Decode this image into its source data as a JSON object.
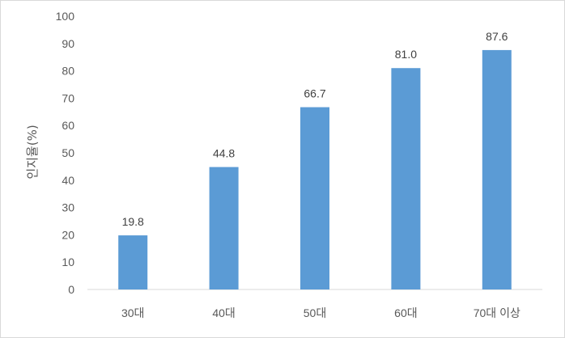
{
  "chart_data": {
    "type": "bar",
    "title": "",
    "xlabel": "",
    "ylabel": "인지율(%)",
    "categories": [
      "30대",
      "40대",
      "50대",
      "60대",
      "70대 이상"
    ],
    "values": [
      19.8,
      44.8,
      66.7,
      81.0,
      87.6
    ],
    "value_labels": [
      "19.8",
      "44.8",
      "66.7",
      "81.0",
      "87.6"
    ],
    "ylim": [
      0,
      100
    ],
    "yticks": [
      "0",
      "10",
      "20",
      "30",
      "40",
      "50",
      "60",
      "70",
      "80",
      "90",
      "100"
    ],
    "grid": false,
    "legend": "none",
    "bar_color": "#5b9bd5"
  }
}
